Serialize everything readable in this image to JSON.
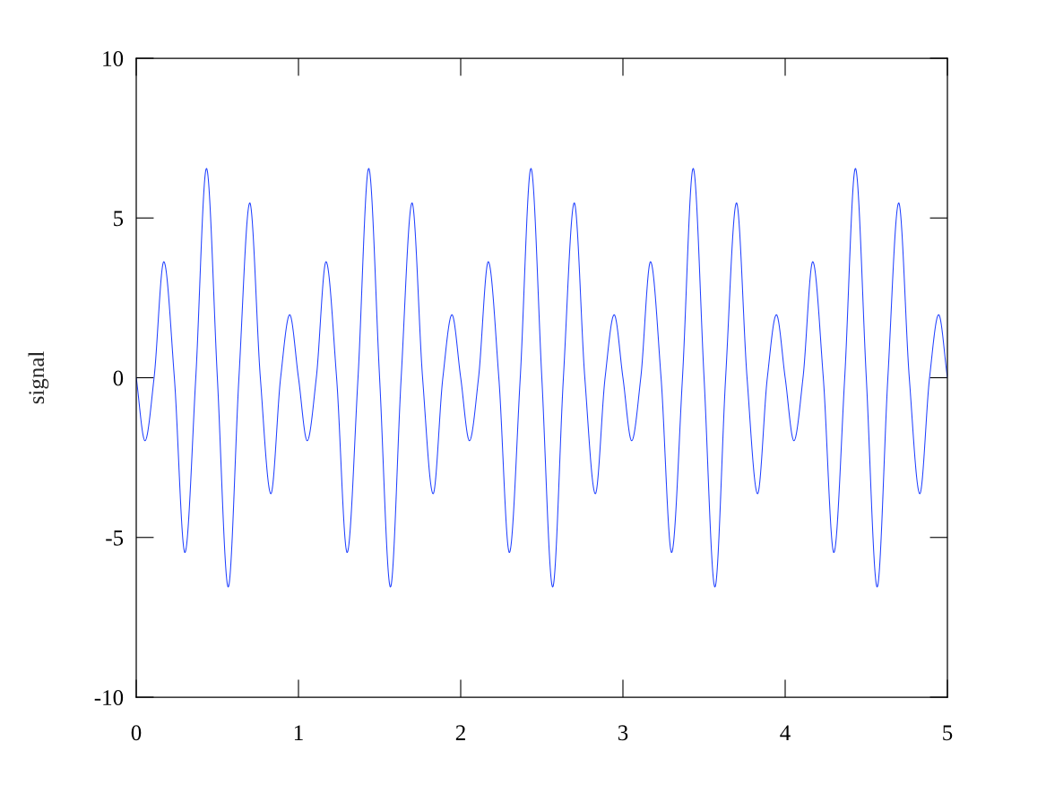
{
  "chart_data": {
    "type": "line",
    "ylabel": "signal",
    "x": [
      0,
      0.054,
      0.11,
      0.17,
      0.235,
      0.3,
      0.367,
      0.433,
      0.5,
      0.567,
      0.633,
      0.7,
      0.765,
      0.83,
      0.89,
      0.946,
      1,
      1.054,
      1.11,
      1.17,
      1.235,
      1.3,
      1.367,
      1.433,
      1.5,
      1.567,
      1.633,
      1.7,
      1.765,
      1.83,
      1.89,
      1.946,
      2,
      2.054,
      2.11,
      2.17,
      2.235,
      2.3,
      2.367,
      2.433,
      2.5,
      2.567,
      2.633,
      2.7,
      2.765,
      2.83,
      2.89,
      2.946,
      3,
      3.054,
      3.11,
      3.17,
      3.235,
      3.3,
      3.367,
      3.433,
      3.5,
      3.567,
      3.633,
      3.7,
      3.765,
      3.83,
      3.89,
      3.946,
      4,
      4.054,
      4.11,
      4.17,
      4.235,
      4.3,
      4.367,
      4.433,
      4.5,
      4.567,
      4.633,
      4.7,
      4.765,
      4.83,
      4.89,
      4.946,
      5
    ],
    "series": [
      {
        "color": "#2040ff",
        "values": [
          0,
          -1.97,
          0,
          3.63,
          0,
          -5.47,
          0,
          6.55,
          0,
          -6.55,
          0,
          5.47,
          0,
          -3.63,
          0,
          1.97,
          0,
          -1.97,
          0,
          3.63,
          0,
          -5.47,
          0,
          6.55,
          0,
          -6.55,
          0,
          5.47,
          0,
          -3.63,
          0,
          1.97,
          0,
          -1.97,
          0,
          3.63,
          0,
          -5.47,
          0,
          6.55,
          0,
          -6.55,
          0,
          5.47,
          0,
          -3.63,
          0,
          1.97,
          0,
          -1.97,
          0,
          3.63,
          0,
          -5.47,
          0,
          6.55,
          0,
          -6.55,
          0,
          5.47,
          0,
          -3.63,
          0,
          1.97,
          0,
          -1.97,
          0,
          3.63,
          0,
          -5.47,
          0,
          6.55,
          0,
          -6.55,
          0,
          5.47,
          0,
          -3.63,
          0,
          1.97,
          0
        ]
      }
    ],
    "xlim": [
      0,
      5
    ],
    "ylim": [
      -10,
      10
    ],
    "xticks": [
      0,
      1,
      2,
      3,
      4,
      5
    ],
    "yticks": [
      -10,
      -5,
      0,
      5,
      10
    ],
    "line_style": "solid"
  }
}
